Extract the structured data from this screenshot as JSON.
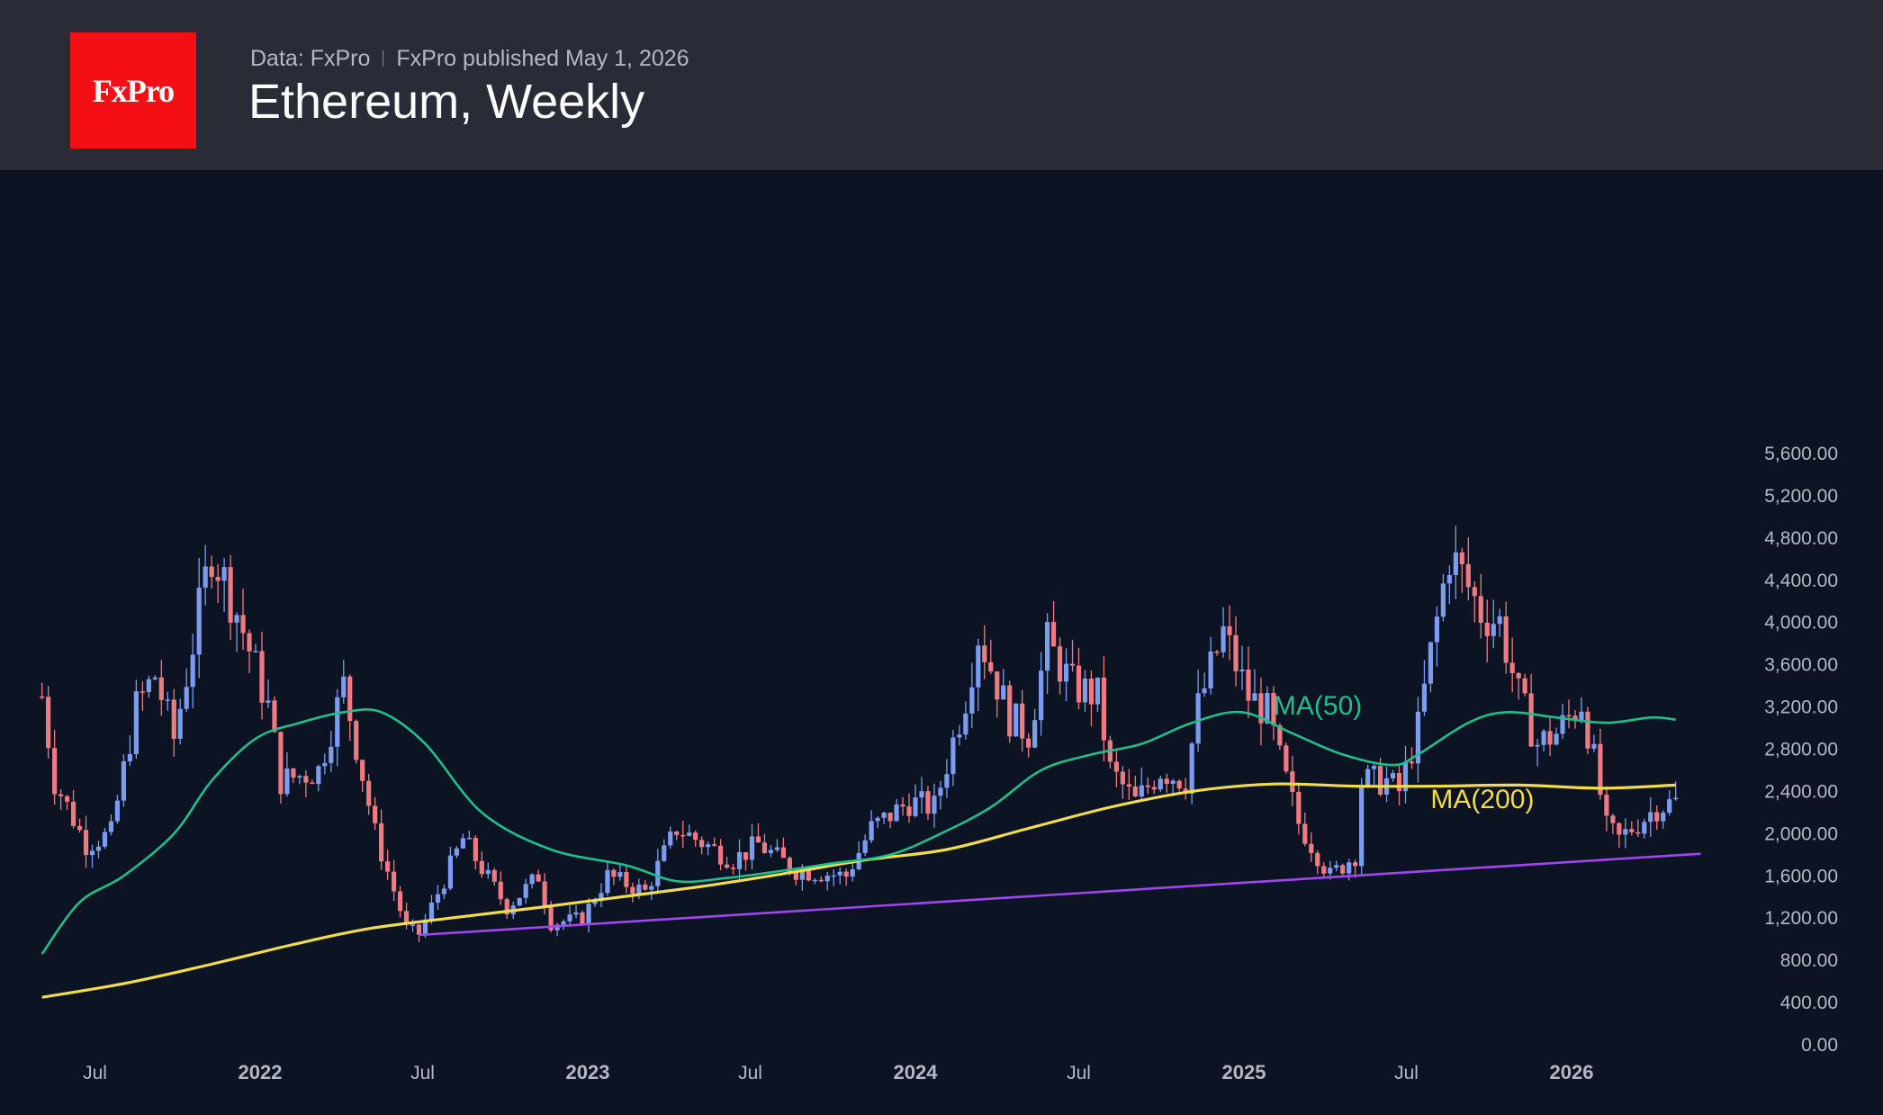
{
  "header": {
    "logo_text": "FxPro",
    "source": "Data: FxPro",
    "published": "FxPro published May 1, 2026",
    "title": "Ethereum, Weekly"
  },
  "colors": {
    "background": "#0c1322",
    "header": "#292c37",
    "logo": "#f40f17",
    "up_candle": "#7b9cf0",
    "down_candle": "#f07a82",
    "ma50": "#1fbf8c",
    "ma200": "#f1dd4a",
    "trendline": "#a145f0"
  },
  "chart_data": {
    "type": "candlestick",
    "title": "Ethereum, Weekly",
    "ylim": [
      0,
      5600
    ],
    "yticks": [
      "5,600.00",
      "5,200.00",
      "4,800.00",
      "4,400.00",
      "4,000.00",
      "3,600.00",
      "3,200.00",
      "2,800.00",
      "2,400.00",
      "2,000.00",
      "1,600.00",
      "1,200.00",
      "800.00",
      "400.00",
      "0.00"
    ],
    "xticks": [
      {
        "label": "Jul",
        "date": "2021-07-01",
        "year": false
      },
      {
        "label": "2022",
        "date": "2022-01-01",
        "year": true
      },
      {
        "label": "Jul",
        "date": "2022-07-01",
        "year": false
      },
      {
        "label": "2023",
        "date": "2023-01-01",
        "year": true
      },
      {
        "label": "Jul",
        "date": "2023-07-01",
        "year": false
      },
      {
        "label": "2024",
        "date": "2024-01-01",
        "year": true
      },
      {
        "label": "Jul",
        "date": "2024-07-01",
        "year": false
      },
      {
        "label": "2025",
        "date": "2025-01-01",
        "year": true
      },
      {
        "label": "Jul",
        "date": "2025-07-01",
        "year": false
      },
      {
        "label": "2026",
        "date": "2026-01-01",
        "year": true
      }
    ],
    "grid": false,
    "price_anchors": [
      {
        "date": "2021-05-03",
        "price": 3300
      },
      {
        "date": "2021-05-17",
        "price": 2500
      },
      {
        "date": "2021-06-21",
        "price": 1900
      },
      {
        "date": "2021-07-19",
        "price": 2000
      },
      {
        "date": "2021-08-16",
        "price": 3200
      },
      {
        "date": "2021-09-06",
        "price": 3500
      },
      {
        "date": "2021-09-27",
        "price": 2900
      },
      {
        "date": "2021-11-08",
        "price": 4700
      },
      {
        "date": "2021-12-06",
        "price": 4100
      },
      {
        "date": "2022-01-10",
        "price": 3200
      },
      {
        "date": "2022-01-24",
        "price": 2500
      },
      {
        "date": "2022-03-07",
        "price": 2600
      },
      {
        "date": "2022-04-04",
        "price": 3400
      },
      {
        "date": "2022-05-09",
        "price": 2000
      },
      {
        "date": "2022-06-13",
        "price": 1100
      },
      {
        "date": "2022-06-27",
        "price": 1050
      },
      {
        "date": "2022-08-15",
        "price": 1950
      },
      {
        "date": "2022-10-03",
        "price": 1300
      },
      {
        "date": "2022-11-07",
        "price": 1600
      },
      {
        "date": "2022-11-21",
        "price": 1150
      },
      {
        "date": "2022-12-26",
        "price": 1200
      },
      {
        "date": "2023-01-23",
        "price": 1600
      },
      {
        "date": "2023-03-06",
        "price": 1450
      },
      {
        "date": "2023-04-10",
        "price": 2050
      },
      {
        "date": "2023-06-12",
        "price": 1750
      },
      {
        "date": "2023-07-10",
        "price": 1900
      },
      {
        "date": "2023-08-21",
        "price": 1650
      },
      {
        "date": "2023-10-16",
        "price": 1600
      },
      {
        "date": "2023-11-13",
        "price": 2050
      },
      {
        "date": "2023-12-25",
        "price": 2300
      },
      {
        "date": "2024-01-22",
        "price": 2250
      },
      {
        "date": "2024-02-26",
        "price": 3300
      },
      {
        "date": "2024-03-11",
        "price": 3900
      },
      {
        "date": "2024-04-15",
        "price": 3100
      },
      {
        "date": "2024-05-06",
        "price": 2950
      },
      {
        "date": "2024-05-27",
        "price": 3800
      },
      {
        "date": "2024-06-24",
        "price": 3400
      },
      {
        "date": "2024-07-22",
        "price": 3300
      },
      {
        "date": "2024-08-05",
        "price": 2600
      },
      {
        "date": "2024-09-02",
        "price": 2300
      },
      {
        "date": "2024-09-30",
        "price": 2600
      },
      {
        "date": "2024-10-28",
        "price": 2500
      },
      {
        "date": "2024-11-11",
        "price": 3200
      },
      {
        "date": "2024-12-09",
        "price": 3900
      },
      {
        "date": "2025-01-06",
        "price": 3300
      },
      {
        "date": "2025-01-27",
        "price": 3150
      },
      {
        "date": "2025-02-10",
        "price": 2700
      },
      {
        "date": "2025-03-03",
        "price": 2100
      },
      {
        "date": "2025-04-07",
        "price": 1600
      },
      {
        "date": "2025-05-05",
        "price": 1800
      },
      {
        "date": "2025-05-12",
        "price": 2500
      },
      {
        "date": "2025-06-09",
        "price": 2500
      },
      {
        "date": "2025-06-23",
        "price": 2400
      },
      {
        "date": "2025-07-14",
        "price": 3000
      },
      {
        "date": "2025-07-28",
        "price": 3700
      },
      {
        "date": "2025-08-18",
        "price": 4650
      },
      {
        "date": "2025-09-01",
        "price": 4450
      },
      {
        "date": "2025-09-22",
        "price": 4100
      },
      {
        "date": "2025-10-13",
        "price": 4000
      },
      {
        "date": "2025-11-03",
        "price": 3300
      },
      {
        "date": "2025-11-24",
        "price": 2850
      },
      {
        "date": "2025-12-15",
        "price": 2950
      },
      {
        "date": "2026-01-12",
        "price": 3250
      },
      {
        "date": "2026-01-26",
        "price": 2700
      },
      {
        "date": "2026-02-09",
        "price": 2050
      },
      {
        "date": "2026-02-23",
        "price": 1950
      },
      {
        "date": "2026-03-16",
        "price": 2100
      },
      {
        "date": "2026-04-06",
        "price": 2250
      },
      {
        "date": "2026-04-27",
        "price": 2300
      }
    ],
    "ma50": {
      "label": "MA(50)",
      "points": [
        {
          "date": "2021-05-03",
          "price": 860
        },
        {
          "date": "2021-06-14",
          "price": 1350
        },
        {
          "date": "2021-08-02",
          "price": 1600
        },
        {
          "date": "2021-09-27",
          "price": 2000
        },
        {
          "date": "2021-11-08",
          "price": 2500
        },
        {
          "date": "2021-12-27",
          "price": 2900
        },
        {
          "date": "2022-02-14",
          "price": 3050
        },
        {
          "date": "2022-04-04",
          "price": 3150
        },
        {
          "date": "2022-05-16",
          "price": 3150
        },
        {
          "date": "2022-07-04",
          "price": 2850
        },
        {
          "date": "2022-09-05",
          "price": 2200
        },
        {
          "date": "2022-11-21",
          "price": 1850
        },
        {
          "date": "2023-02-13",
          "price": 1700
        },
        {
          "date": "2023-04-10",
          "price": 1550
        },
        {
          "date": "2023-06-05",
          "price": 1580
        },
        {
          "date": "2023-08-07",
          "price": 1650
        },
        {
          "date": "2023-10-02",
          "price": 1720
        },
        {
          "date": "2023-12-04",
          "price": 1800
        },
        {
          "date": "2024-01-29",
          "price": 2000
        },
        {
          "date": "2024-03-25",
          "price": 2250
        },
        {
          "date": "2024-05-20",
          "price": 2600
        },
        {
          "date": "2024-07-15",
          "price": 2750
        },
        {
          "date": "2024-09-09",
          "price": 2850
        },
        {
          "date": "2024-11-04",
          "price": 3050
        },
        {
          "date": "2024-12-30",
          "price": 3150
        },
        {
          "date": "2025-02-24",
          "price": 2950
        },
        {
          "date": "2025-04-21",
          "price": 2750
        },
        {
          "date": "2025-06-16",
          "price": 2650
        },
        {
          "date": "2025-07-14",
          "price": 2750
        },
        {
          "date": "2025-09-08",
          "price": 3050
        },
        {
          "date": "2025-10-20",
          "price": 3150
        },
        {
          "date": "2025-12-15",
          "price": 3100
        },
        {
          "date": "2026-02-09",
          "price": 3050
        },
        {
          "date": "2026-03-30",
          "price": 3100
        },
        {
          "date": "2026-04-27",
          "price": 3080
        }
      ]
    },
    "ma200": {
      "label": "MA(200)",
      "points": [
        {
          "date": "2021-05-03",
          "price": 450
        },
        {
          "date": "2021-08-02",
          "price": 580
        },
        {
          "date": "2021-11-01",
          "price": 750
        },
        {
          "date": "2022-02-07",
          "price": 950
        },
        {
          "date": "2022-05-02",
          "price": 1100
        },
        {
          "date": "2022-08-01",
          "price": 1200
        },
        {
          "date": "2022-11-07",
          "price": 1300
        },
        {
          "date": "2023-02-06",
          "price": 1400
        },
        {
          "date": "2023-05-08",
          "price": 1500
        },
        {
          "date": "2023-08-07",
          "price": 1620
        },
        {
          "date": "2023-11-06",
          "price": 1750
        },
        {
          "date": "2024-02-05",
          "price": 1850
        },
        {
          "date": "2024-05-06",
          "price": 2050
        },
        {
          "date": "2024-08-05",
          "price": 2250
        },
        {
          "date": "2024-11-04",
          "price": 2400
        },
        {
          "date": "2025-02-03",
          "price": 2470
        },
        {
          "date": "2025-05-05",
          "price": 2450
        },
        {
          "date": "2025-08-04",
          "price": 2450
        },
        {
          "date": "2025-11-03",
          "price": 2460
        },
        {
          "date": "2026-02-02",
          "price": 2430
        },
        {
          "date": "2026-04-27",
          "price": 2460
        }
      ]
    },
    "trendline": {
      "points": [
        {
          "date": "2022-06-27",
          "price": 1040
        },
        {
          "date": "2026-05-25",
          "price": 1810
        }
      ]
    },
    "labels": [
      {
        "text": "MA(50)",
        "date": "2025-02-03",
        "price": 3130,
        "series": "ma50"
      },
      {
        "text": "MA(200)",
        "date": "2025-07-28",
        "price": 2240,
        "series": "ma200"
      }
    ]
  }
}
